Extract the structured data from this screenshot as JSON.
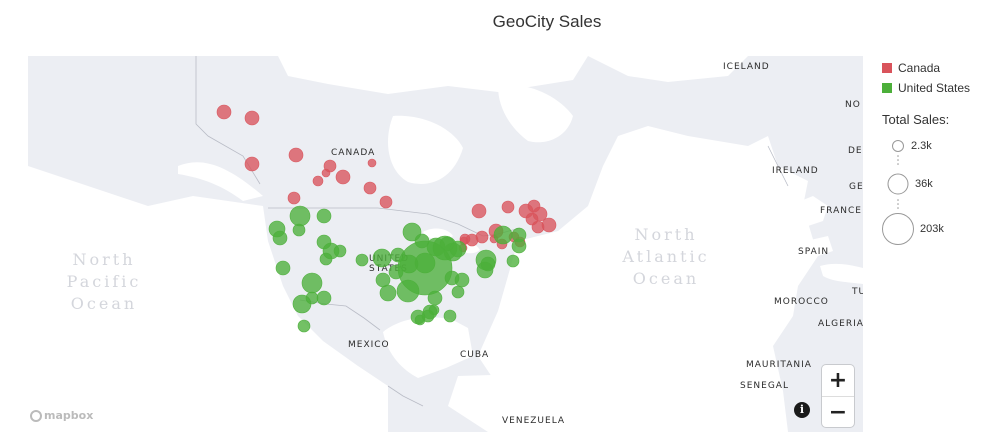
{
  "title": "GeoCity Sales",
  "map_labels": {
    "iceland": "ICELAND",
    "canada": "CANADA",
    "united_states": "UNITED STATES",
    "mexico": "MEXICO",
    "cuba": "CUBA",
    "venezuela": "VENEZUELA",
    "ireland": "IRELAND",
    "france": "FRANCE",
    "spain": "SPAIN",
    "morocco": "MOROCCO",
    "algeria": "ALGERIA",
    "mauritania": "MAURITANIA",
    "senegal": "SENEGAL",
    "no_cut": "NO",
    "de_cut": "DE",
    "ge_cut": "GE",
    "tu_cut": "TU"
  },
  "oceans": {
    "north_pacific": [
      "North",
      "Pacific",
      "Ocean"
    ],
    "north_atlantic": [
      "North",
      "Atlantic",
      "Ocean"
    ]
  },
  "legend": {
    "series": [
      {
        "name": "Canada",
        "color": "#d9535b"
      },
      {
        "name": "United States",
        "color": "#4caf3a"
      }
    ],
    "size_title": "Total Sales:",
    "size_labels": [
      "2.3k",
      "36k",
      "203k"
    ]
  },
  "controls": {
    "zoom_in": "+",
    "zoom_out": "−",
    "info": "i",
    "logo": "mapbox"
  },
  "colors": {
    "water": "#ffffff",
    "land": "#eceef3",
    "canada": "#d9535b",
    "united_states": "#4caf3a"
  }
}
